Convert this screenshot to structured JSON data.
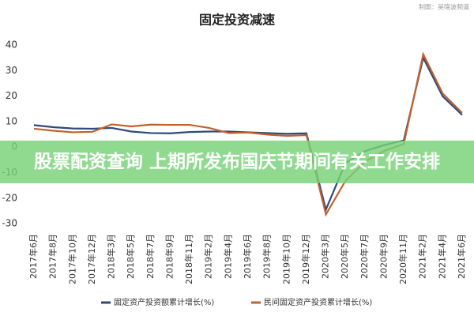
{
  "chart_data": {
    "type": "line",
    "title": "固定投资减速",
    "source_note": "制图：吴晓波频道",
    "categories": [
      "2017年6月",
      "2017年8月",
      "2017年10月",
      "2017年12月",
      "2018年3月",
      "2018年5月",
      "2018年7月",
      "2018年9月",
      "2018年11月",
      "2019年2月",
      "2019年4月",
      "2019年6月",
      "2019年8月",
      "2019年10月",
      "2019年12月",
      "2020年3月",
      "2020年5月",
      "2020年7月",
      "2020年9月",
      "2020年11月",
      "2021年2月",
      "2021年4月",
      "2021年6月"
    ],
    "series": [
      {
        "name": "固定资产投资额累计增长(%)",
        "color": "#2e4a7a",
        "values": [
          8.6,
          7.8,
          7.3,
          7.2,
          7.5,
          6.1,
          5.5,
          5.4,
          5.9,
          6.1,
          6.1,
          5.8,
          5.5,
          5.2,
          5.4,
          -24.5,
          -6.3,
          -1.6,
          0.8,
          2.6,
          35.0,
          19.9,
          12.6
        ]
      },
      {
        "name": "民间固定资产投资累计增长(%)",
        "color": "#c0622e",
        "values": [
          7.2,
          6.4,
          5.8,
          6.0,
          8.9,
          8.1,
          8.8,
          8.7,
          8.7,
          7.5,
          5.5,
          5.7,
          4.9,
          4.4,
          4.7,
          -26.4,
          -13.3,
          -5.7,
          -1.5,
          1.2,
          36.4,
          21.0,
          13.4
        ]
      }
    ],
    "ylim": [
      -32,
      44
    ],
    "yticks": [
      40,
      30,
      20,
      10,
      0,
      -10,
      -20,
      -30
    ],
    "grid": false
  },
  "overlay_banner": {
    "text": "股票配资查询 上期所发布国庆节期间有关工作安排"
  }
}
